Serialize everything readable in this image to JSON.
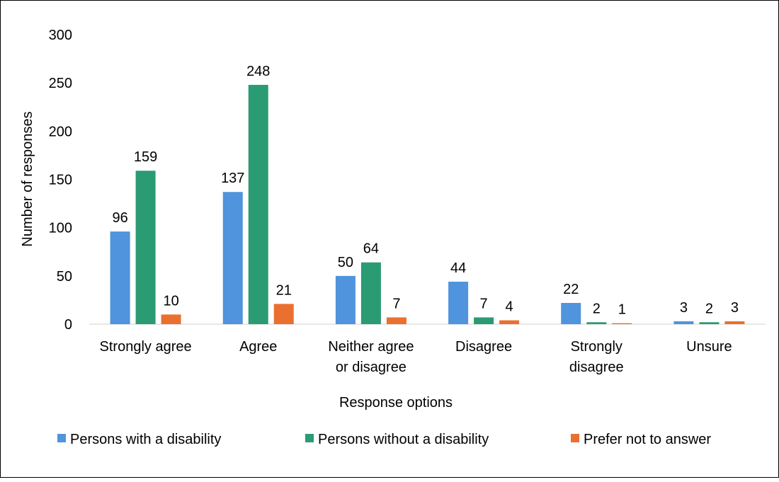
{
  "chart_data": {
    "type": "bar",
    "title": "",
    "xlabel": "Response options",
    "ylabel": "Number of responses",
    "ylim": [
      0,
      300
    ],
    "yticks": [
      0,
      50,
      100,
      150,
      200,
      250,
      300
    ],
    "grid": false,
    "legend_position": "bottom",
    "categories": [
      [
        "Strongly agree"
      ],
      [
        "Agree"
      ],
      [
        "Neither agree",
        "or disagree"
      ],
      [
        "Disagree"
      ],
      [
        "Strongly",
        "disagree"
      ],
      [
        "Unsure"
      ]
    ],
    "series": [
      {
        "name": "Persons with a disability",
        "color": "#4f94dc",
        "values": [
          96,
          137,
          50,
          44,
          22,
          3
        ]
      },
      {
        "name": "Persons without a disability",
        "color": "#2a9b73",
        "values": [
          159,
          248,
          64,
          7,
          2,
          2
        ]
      },
      {
        "name": "Prefer not to answer",
        "color": "#ea7030",
        "values": [
          10,
          21,
          7,
          4,
          1,
          3
        ]
      }
    ]
  }
}
